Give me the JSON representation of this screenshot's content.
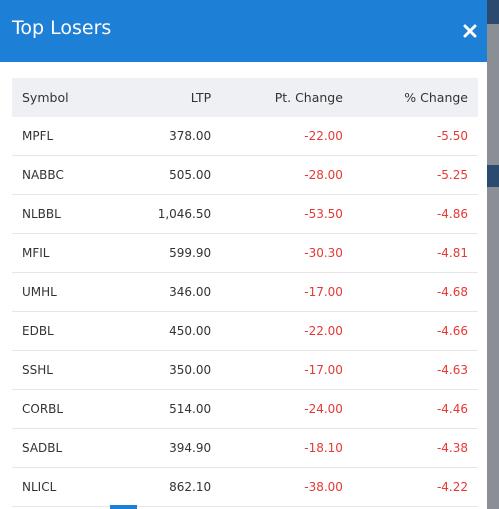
{
  "header": {
    "title": "Top Losers"
  },
  "table": {
    "columns": [
      "Symbol",
      "LTP",
      "Pt. Change",
      "% Change"
    ],
    "rows": [
      [
        "MPFL",
        "378.00",
        "-22.00",
        "-5.50"
      ],
      [
        "NABBC",
        "505.00",
        "-28.00",
        "-5.25"
      ],
      [
        "NLBBL",
        "1,046.50",
        "-53.50",
        "-4.86"
      ],
      [
        "MFIL",
        "599.90",
        "-30.30",
        "-4.81"
      ],
      [
        "UMHL",
        "346.00",
        "-17.00",
        "-4.68"
      ],
      [
        "EDBL",
        "450.00",
        "-22.00",
        "-4.66"
      ],
      [
        "SSHL",
        "350.00",
        "-17.00",
        "-4.63"
      ],
      [
        "CORBL",
        "514.00",
        "-24.00",
        "-4.46"
      ],
      [
        "SADBL",
        "394.90",
        "-18.10",
        "-4.38"
      ],
      [
        "NLICL",
        "862.10",
        "-38.00",
        "-4.22"
      ]
    ]
  }
}
